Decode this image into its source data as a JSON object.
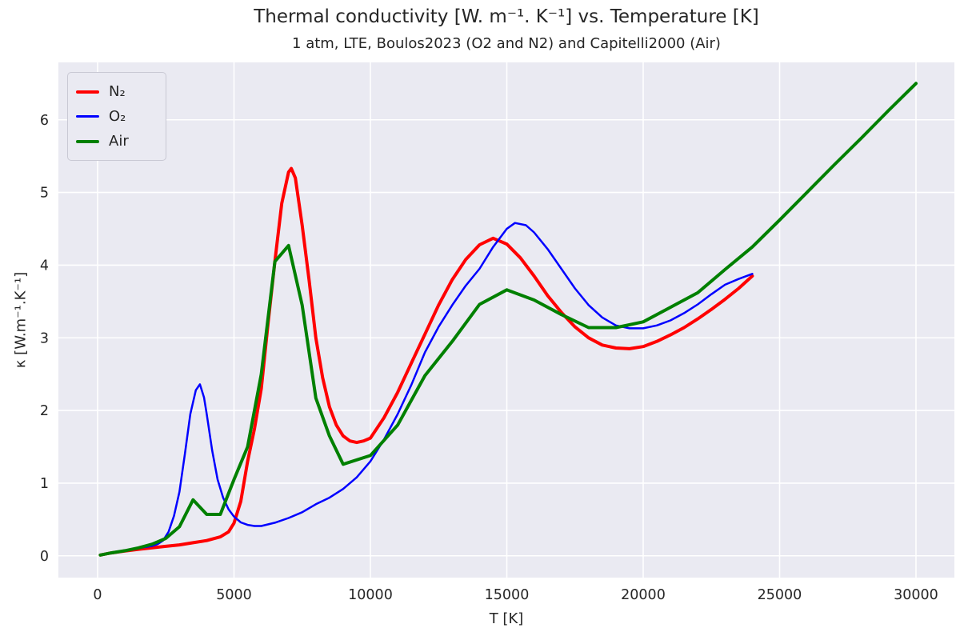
{
  "figure": {
    "title": "Thermal conductivity [W. m⁻¹. K⁻¹] vs. Temperature [K]",
    "subtitle": "1 atm, LTE, Boulos2023 (O2 and N2) and Capitelli2000 (Air)"
  },
  "chart_data": {
    "type": "line",
    "title": "Thermal conductivity [W. m⁻¹. K⁻¹] vs. Temperature [K]",
    "subtitle": "1 atm, LTE, Boulos2023 (O2 and N2) and Capitelli2000 (Air)",
    "xlabel": "T [K]",
    "ylabel": "κ [W.m⁻¹.K⁻¹]",
    "xlim": [
      -1437,
      31408
    ],
    "ylim": [
      -0.3,
      6.79
    ],
    "x_ticks": [
      0,
      5000,
      10000,
      15000,
      20000,
      25000,
      30000
    ],
    "y_ticks": [
      0,
      1,
      2,
      3,
      4,
      5,
      6
    ],
    "grid": true,
    "legend_position": "upper left",
    "plot_background": "#eaeaf2",
    "grid_color": "#ffffff",
    "text_color": "#262626",
    "series": [
      {
        "name": "N₂",
        "color": "#ff0000",
        "linewidth": 4,
        "points": [
          [
            100,
            0.01
          ],
          [
            500,
            0.04
          ],
          [
            1000,
            0.065
          ],
          [
            1500,
            0.09
          ],
          [
            2000,
            0.11
          ],
          [
            2500,
            0.13
          ],
          [
            3000,
            0.15
          ],
          [
            3500,
            0.18
          ],
          [
            4000,
            0.21
          ],
          [
            4500,
            0.26
          ],
          [
            4800,
            0.33
          ],
          [
            5000,
            0.45
          ],
          [
            5250,
            0.75
          ],
          [
            5500,
            1.3
          ],
          [
            5750,
            1.75
          ],
          [
            6000,
            2.3
          ],
          [
            6250,
            3.2
          ],
          [
            6500,
            4.05
          ],
          [
            6750,
            4.85
          ],
          [
            7000,
            5.28
          ],
          [
            7100,
            5.33
          ],
          [
            7250,
            5.2
          ],
          [
            7500,
            4.55
          ],
          [
            7750,
            3.8
          ],
          [
            8000,
            3.0
          ],
          [
            8250,
            2.45
          ],
          [
            8500,
            2.05
          ],
          [
            8750,
            1.8
          ],
          [
            9000,
            1.65
          ],
          [
            9250,
            1.58
          ],
          [
            9500,
            1.56
          ],
          [
            9750,
            1.58
          ],
          [
            10000,
            1.62
          ],
          [
            10500,
            1.9
          ],
          [
            11000,
            2.25
          ],
          [
            11500,
            2.65
          ],
          [
            12000,
            3.05
          ],
          [
            12500,
            3.45
          ],
          [
            13000,
            3.8
          ],
          [
            13500,
            4.08
          ],
          [
            14000,
            4.28
          ],
          [
            14500,
            4.37
          ],
          [
            15000,
            4.29
          ],
          [
            15500,
            4.1
          ],
          [
            16000,
            3.85
          ],
          [
            16500,
            3.58
          ],
          [
            17000,
            3.35
          ],
          [
            17500,
            3.15
          ],
          [
            18000,
            3.0
          ],
          [
            18500,
            2.9
          ],
          [
            19000,
            2.86
          ],
          [
            19500,
            2.85
          ],
          [
            20000,
            2.88
          ],
          [
            20500,
            2.95
          ],
          [
            21000,
            3.04
          ],
          [
            21500,
            3.14
          ],
          [
            22000,
            3.26
          ],
          [
            22500,
            3.39
          ],
          [
            23000,
            3.53
          ],
          [
            23500,
            3.68
          ],
          [
            24000,
            3.85
          ]
        ]
      },
      {
        "name": "O₂",
        "color": "#0000ff",
        "linewidth": 2.5,
        "points": [
          [
            100,
            0.01
          ],
          [
            500,
            0.045
          ],
          [
            1000,
            0.075
          ],
          [
            1500,
            0.105
          ],
          [
            2000,
            0.135
          ],
          [
            2200,
            0.16
          ],
          [
            2400,
            0.21
          ],
          [
            2600,
            0.33
          ],
          [
            2800,
            0.55
          ],
          [
            3000,
            0.88
          ],
          [
            3200,
            1.4
          ],
          [
            3400,
            1.95
          ],
          [
            3600,
            2.28
          ],
          [
            3750,
            2.36
          ],
          [
            3900,
            2.18
          ],
          [
            4000,
            1.95
          ],
          [
            4200,
            1.45
          ],
          [
            4400,
            1.05
          ],
          [
            4600,
            0.8
          ],
          [
            4800,
            0.64
          ],
          [
            5000,
            0.54
          ],
          [
            5250,
            0.46
          ],
          [
            5500,
            0.425
          ],
          [
            5750,
            0.41
          ],
          [
            6000,
            0.41
          ],
          [
            6500,
            0.455
          ],
          [
            7000,
            0.52
          ],
          [
            7500,
            0.6
          ],
          [
            8000,
            0.71
          ],
          [
            8500,
            0.8
          ],
          [
            9000,
            0.92
          ],
          [
            9500,
            1.08
          ],
          [
            10000,
            1.3
          ],
          [
            10500,
            1.6
          ],
          [
            11000,
            1.95
          ],
          [
            11500,
            2.35
          ],
          [
            12000,
            2.8
          ],
          [
            12500,
            3.15
          ],
          [
            13000,
            3.45
          ],
          [
            13500,
            3.72
          ],
          [
            14000,
            3.95
          ],
          [
            14500,
            4.25
          ],
          [
            15000,
            4.5
          ],
          [
            15300,
            4.58
          ],
          [
            15700,
            4.55
          ],
          [
            16000,
            4.45
          ],
          [
            16500,
            4.22
          ],
          [
            17000,
            3.95
          ],
          [
            17500,
            3.68
          ],
          [
            18000,
            3.45
          ],
          [
            18500,
            3.28
          ],
          [
            19000,
            3.17
          ],
          [
            19500,
            3.13
          ],
          [
            20000,
            3.13
          ],
          [
            20500,
            3.17
          ],
          [
            21000,
            3.24
          ],
          [
            21500,
            3.34
          ],
          [
            22000,
            3.46
          ],
          [
            22500,
            3.6
          ],
          [
            23000,
            3.73
          ],
          [
            23500,
            3.81
          ],
          [
            24000,
            3.88
          ]
        ]
      },
      {
        "name": "Air",
        "color": "#008000",
        "linewidth": 4,
        "points": [
          [
            100,
            0.01
          ],
          [
            500,
            0.04
          ],
          [
            1000,
            0.07
          ],
          [
            1500,
            0.11
          ],
          [
            2000,
            0.16
          ],
          [
            2500,
            0.24
          ],
          [
            3000,
            0.4
          ],
          [
            3500,
            0.77
          ],
          [
            4000,
            0.57
          ],
          [
            4500,
            0.57
          ],
          [
            5000,
            1.05
          ],
          [
            5500,
            1.5
          ],
          [
            6000,
            2.5
          ],
          [
            6500,
            4.05
          ],
          [
            7000,
            4.27
          ],
          [
            7500,
            3.45
          ],
          [
            8000,
            2.17
          ],
          [
            8500,
            1.65
          ],
          [
            9000,
            1.26
          ],
          [
            10000,
            1.38
          ],
          [
            11000,
            1.8
          ],
          [
            12000,
            2.48
          ],
          [
            13000,
            2.95
          ],
          [
            14000,
            3.46
          ],
          [
            15000,
            3.66
          ],
          [
            16000,
            3.52
          ],
          [
            17000,
            3.32
          ],
          [
            18000,
            3.14
          ],
          [
            19000,
            3.14
          ],
          [
            20000,
            3.22
          ],
          [
            21000,
            3.42
          ],
          [
            22000,
            3.62
          ],
          [
            23000,
            3.94
          ],
          [
            24000,
            4.25
          ],
          [
            25000,
            4.62
          ],
          [
            26000,
            5.0
          ],
          [
            27000,
            5.38
          ],
          [
            28000,
            5.75
          ],
          [
            29000,
            6.13
          ],
          [
            30000,
            6.5
          ]
        ]
      }
    ]
  }
}
